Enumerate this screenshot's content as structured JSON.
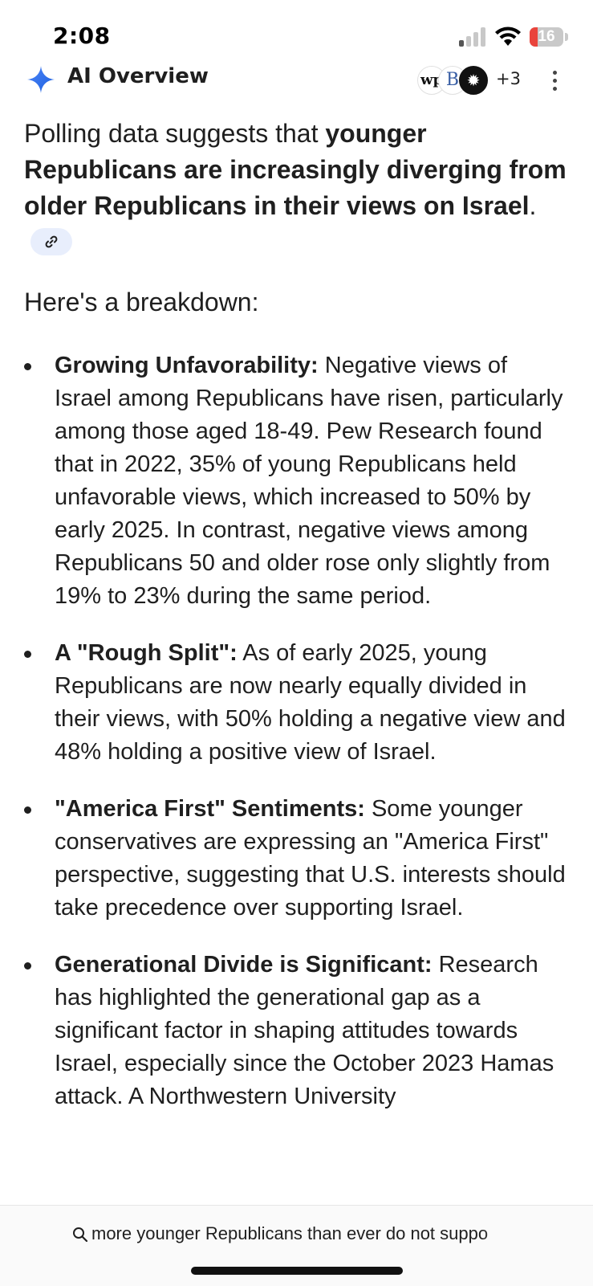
{
  "status_bar": {
    "time": "2:08",
    "battery_level": "16"
  },
  "ai_overview": {
    "title": "AI Overview",
    "sources": {
      "logo_1": "wp",
      "logo_2": "B",
      "logo_3": "✹",
      "more_count": "+3"
    },
    "icons": [
      "sparkle-icon",
      "more-vert-icon",
      "link-icon"
    ]
  },
  "content": {
    "intro_plain": "Polling data suggests that ",
    "intro_bold": "younger Republicans are increasingly diverging from older Republicans in their views on Israel",
    "intro_end": ".",
    "breakdown_heading": "Here's a breakdown:",
    "bullets": [
      {
        "title": "Growing Unfavorability:",
        "text": " Negative views of Israel among Republicans have risen, particularly among those aged 18-49. Pew Research found that in 2022, 35% of young Republicans held unfavorable views, which increased to 50% by early 2025. In contrast, negative views among Republicans 50 and older rose only slightly from 19% to 23% during the same period."
      },
      {
        "title": "A \"Rough Split\":",
        "text": " As of early 2025, young Republicans are now nearly equally divided in their views, with 50% holding a negative view and 48% holding a positive view of Israel."
      },
      {
        "title": "\"America First\" Sentiments:",
        "text": " Some younger conservatives are expressing an \"America First\" perspective, suggesting that U.S. interests should take precedence over supporting Israel."
      },
      {
        "title": "Generational Divide is Significant:",
        "text": " Research has highlighted the generational gap as a significant factor in shaping attitudes towards Israel, especially since the October 2023 Hamas attack. A Northwestern University"
      }
    ]
  },
  "search": {
    "query": "more younger Republicans than ever do not suppo"
  },
  "colors": {
    "accent_blue": "#4285f4",
    "battery_red": "#e9443c",
    "chip_bg": "#e8eefc"
  }
}
